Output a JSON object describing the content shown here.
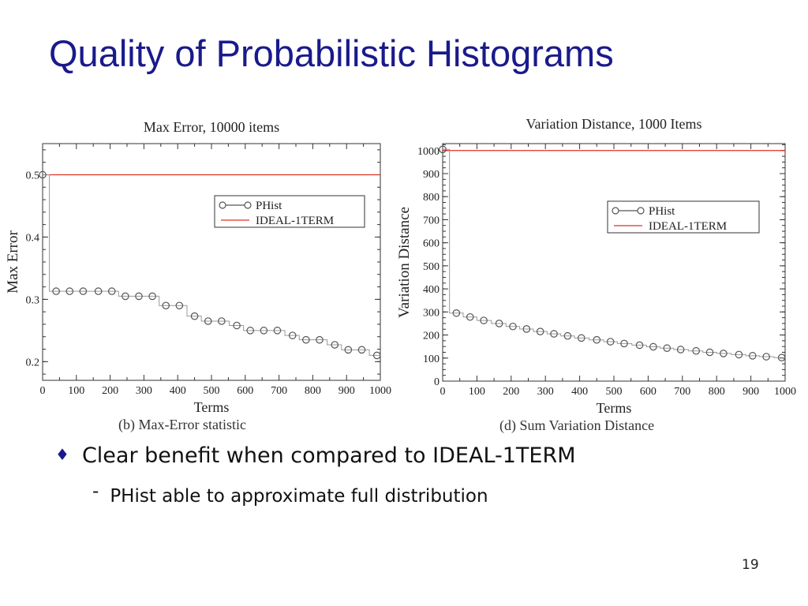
{
  "slide": {
    "title": "Quality of Probabilistic Histograms",
    "page_number": "19"
  },
  "bullets": [
    {
      "glyph": "♦",
      "text": "Clear benefit when compared to IDEAL-1TERM",
      "level": 1
    },
    {
      "glyph": "-",
      "text": "PHist able to approximate full distribution",
      "level": 2
    }
  ],
  "colors": {
    "title": "#1a1a8c",
    "phist": "#555555",
    "ideal": "#e03020"
  },
  "chart_data": [
    {
      "type": "line",
      "title": "Max Error, 10000 items",
      "caption": "(b) Max-Error statistic",
      "xlabel": "Terms",
      "ylabel": "Max Error",
      "xlim": [
        0,
        1000
      ],
      "ylim": [
        0.17,
        0.55
      ],
      "x_ticks": [
        0,
        100,
        200,
        300,
        400,
        500,
        600,
        700,
        800,
        900,
        1000
      ],
      "y_ticks": [
        0.2,
        0.3,
        0.4,
        0.5
      ],
      "y_tick_labels": [
        "0.2",
        "0.3",
        "0.4",
        "0.5"
      ],
      "grid": false,
      "legend_position": "top-right",
      "series": [
        {
          "name": "PHist",
          "marker": "circle",
          "x": [
            0,
            40,
            80,
            120,
            165,
            205,
            245,
            285,
            325,
            365,
            405,
            450,
            490,
            530,
            575,
            615,
            655,
            695,
            740,
            780,
            820,
            865,
            905,
            945,
            990
          ],
          "y": [
            0.5,
            0.313,
            0.313,
            0.313,
            0.313,
            0.313,
            0.305,
            0.305,
            0.305,
            0.29,
            0.29,
            0.273,
            0.265,
            0.265,
            0.258,
            0.25,
            0.25,
            0.25,
            0.242,
            0.235,
            0.235,
            0.227,
            0.219,
            0.219,
            0.21
          ]
        },
        {
          "name": "IDEAL-1TERM",
          "marker": "none",
          "x": [
            0,
            1000
          ],
          "y": [
            0.5,
            0.5
          ]
        }
      ]
    },
    {
      "type": "line",
      "title": "Variation Distance, 1000 Items",
      "caption": "(d) Sum Variation Distance",
      "xlabel": "Terms",
      "ylabel": "Variation Distance",
      "xlim": [
        0,
        1000
      ],
      "ylim": [
        0,
        1030
      ],
      "x_ticks": [
        0,
        100,
        200,
        300,
        400,
        500,
        600,
        700,
        800,
        900,
        1000
      ],
      "y_ticks": [
        0,
        100,
        200,
        300,
        400,
        500,
        600,
        700,
        800,
        900,
        1000
      ],
      "y_tick_labels": [
        "0",
        "100",
        "200",
        "300",
        "400",
        "500",
        "600",
        "700",
        "800",
        "900",
        "1000"
      ],
      "grid": false,
      "legend_position": "top-right",
      "series": [
        {
          "name": "PHist",
          "marker": "circle",
          "x": [
            0,
            40,
            80,
            120,
            165,
            205,
            245,
            285,
            325,
            365,
            405,
            450,
            490,
            530,
            575,
            615,
            655,
            695,
            740,
            780,
            820,
            865,
            905,
            945,
            990
          ],
          "y": [
            1005,
            295,
            278,
            263,
            250,
            237,
            226,
            215,
            205,
            196,
            187,
            179,
            171,
            163,
            156,
            149,
            143,
            137,
            131,
            125,
            120,
            115,
            110,
            106,
            102
          ]
        },
        {
          "name": "IDEAL-1TERM",
          "marker": "none",
          "x": [
            0,
            1000
          ],
          "y": [
            1000,
            1000
          ]
        }
      ]
    }
  ]
}
